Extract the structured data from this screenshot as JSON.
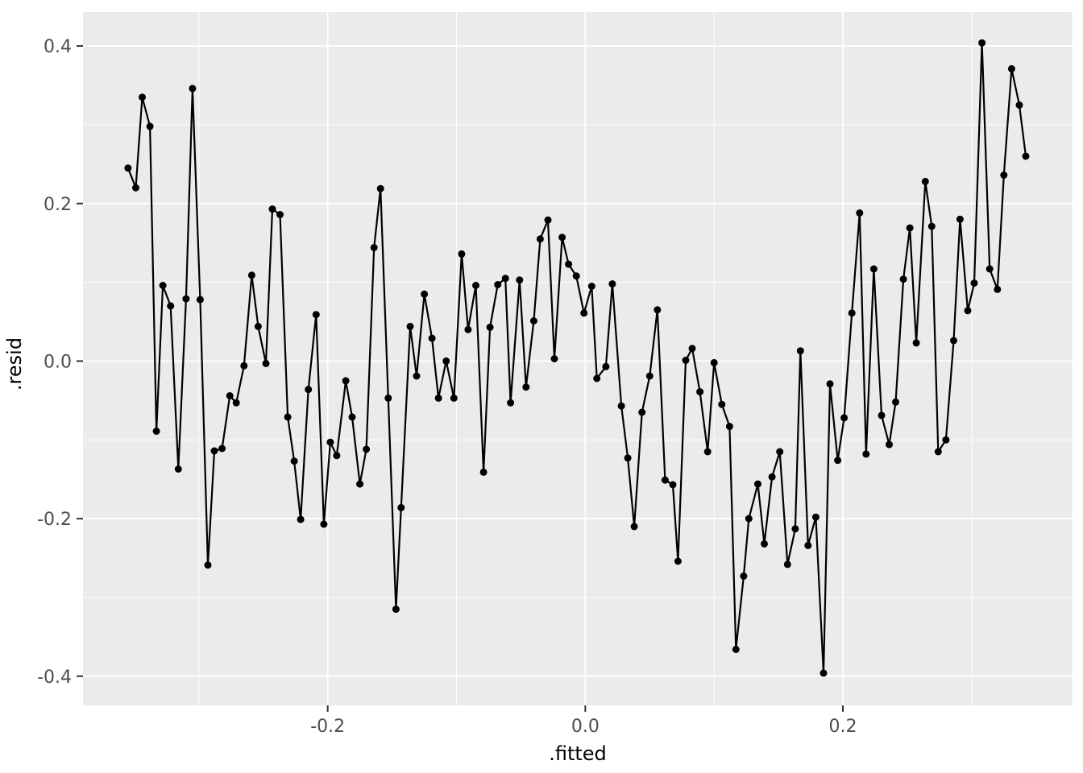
{
  "chart_data": {
    "type": "line",
    "title": "",
    "xlabel": ".fitted",
    "ylabel": ".resid",
    "x_domain": [
      -0.39,
      0.378
    ],
    "y_domain": [
      -0.437,
      0.443
    ],
    "x_ticks": [
      {
        "v": -0.2,
        "label": "-0.2"
      },
      {
        "v": 0.0,
        "label": "0.0"
      },
      {
        "v": 0.2,
        "label": "0.2"
      }
    ],
    "y_ticks": [
      {
        "v": -0.4,
        "label": "-0.4"
      },
      {
        "v": -0.2,
        "label": "-0.2"
      },
      {
        "v": 0.0,
        "label": "0.0"
      },
      {
        "v": 0.2,
        "label": "0.2"
      },
      {
        "v": 0.4,
        "label": "0.4"
      }
    ],
    "x_minor": [
      -0.3,
      -0.1,
      0.1,
      0.3
    ],
    "y_minor": [
      -0.3,
      -0.1,
      0.1,
      0.3
    ],
    "grid": true,
    "legend": "none",
    "colors": {
      "panel_bg": "#EBEBEB",
      "grid": "#FFFFFF",
      "line": "#000000",
      "point": "#000000",
      "tick_label": "#4D4D4D",
      "tick_mark": "#333333",
      "axis_title": "#000000"
    },
    "points": [
      [
        -0.355,
        0.245
      ],
      [
        -0.349,
        0.22
      ],
      [
        -0.344,
        0.335
      ],
      [
        -0.338,
        0.298
      ],
      [
        -0.333,
        -0.089
      ],
      [
        -0.328,
        0.096
      ],
      [
        -0.322,
        0.07
      ],
      [
        -0.316,
        -0.137
      ],
      [
        -0.31,
        0.079
      ],
      [
        -0.305,
        0.346
      ],
      [
        -0.299,
        0.078
      ],
      [
        -0.293,
        -0.259
      ],
      [
        -0.288,
        -0.114
      ],
      [
        -0.282,
        -0.111
      ],
      [
        -0.276,
        -0.044
      ],
      [
        -0.271,
        -0.053
      ],
      [
        -0.265,
        -0.006
      ],
      [
        -0.259,
        0.109
      ],
      [
        -0.254,
        0.044
      ],
      [
        -0.248,
        -0.003
      ],
      [
        -0.243,
        0.193
      ],
      [
        -0.237,
        0.186
      ],
      [
        -0.231,
        -0.071
      ],
      [
        -0.226,
        -0.127
      ],
      [
        -0.221,
        -0.201
      ],
      [
        -0.215,
        -0.036
      ],
      [
        -0.209,
        0.059
      ],
      [
        -0.203,
        -0.207
      ],
      [
        -0.198,
        -0.103
      ],
      [
        -0.193,
        -0.12
      ],
      [
        -0.186,
        -0.025
      ],
      [
        -0.181,
        -0.071
      ],
      [
        -0.175,
        -0.156
      ],
      [
        -0.17,
        -0.112
      ],
      [
        -0.164,
        0.144
      ],
      [
        -0.159,
        0.219
      ],
      [
        -0.153,
        -0.047
      ],
      [
        -0.147,
        -0.315
      ],
      [
        -0.143,
        -0.186
      ],
      [
        -0.136,
        0.044
      ],
      [
        -0.131,
        -0.019
      ],
      [
        -0.125,
        0.085
      ],
      [
        -0.119,
        0.029
      ],
      [
        -0.114,
        -0.047
      ],
      [
        -0.108,
        0.0
      ],
      [
        -0.102,
        -0.047
      ],
      [
        -0.096,
        0.136
      ],
      [
        -0.091,
        0.04
      ],
      [
        -0.085,
        0.096
      ],
      [
        -0.079,
        -0.141
      ],
      [
        -0.074,
        0.043
      ],
      [
        -0.068,
        0.097
      ],
      [
        -0.062,
        0.105
      ],
      [
        -0.058,
        -0.053
      ],
      [
        -0.051,
        0.103
      ],
      [
        -0.046,
        -0.033
      ],
      [
        -0.04,
        0.051
      ],
      [
        -0.035,
        0.155
      ],
      [
        -0.029,
        0.179
      ],
      [
        -0.024,
        0.003
      ],
      [
        -0.018,
        0.157
      ],
      [
        -0.013,
        0.123
      ],
      [
        -0.007,
        0.108
      ],
      [
        -0.001,
        0.061
      ],
      [
        0.005,
        0.095
      ],
      [
        0.009,
        -0.022
      ],
      [
        0.016,
        -0.007
      ],
      [
        0.021,
        0.098
      ],
      [
        0.028,
        -0.057
      ],
      [
        0.033,
        -0.123
      ],
      [
        0.038,
        -0.21
      ],
      [
        0.044,
        -0.065
      ],
      [
        0.05,
        -0.019
      ],
      [
        0.056,
        0.065
      ],
      [
        0.062,
        -0.151
      ],
      [
        0.068,
        -0.157
      ],
      [
        0.072,
        -0.254
      ],
      [
        0.078,
        0.001
      ],
      [
        0.083,
        0.016
      ],
      [
        0.089,
        -0.039
      ],
      [
        0.095,
        -0.115
      ],
      [
        0.1,
        -0.002
      ],
      [
        0.106,
        -0.055
      ],
      [
        0.112,
        -0.083
      ],
      [
        0.117,
        -0.366
      ],
      [
        0.123,
        -0.273
      ],
      [
        0.127,
        -0.2
      ],
      [
        0.134,
        -0.156
      ],
      [
        0.139,
        -0.232
      ],
      [
        0.145,
        -0.147
      ],
      [
        0.151,
        -0.115
      ],
      [
        0.157,
        -0.258
      ],
      [
        0.163,
        -0.213
      ],
      [
        0.167,
        0.013
      ],
      [
        0.173,
        -0.234
      ],
      [
        0.179,
        -0.198
      ],
      [
        0.185,
        -0.396
      ],
      [
        0.19,
        -0.029
      ],
      [
        0.196,
        -0.126
      ],
      [
        0.201,
        -0.072
      ],
      [
        0.207,
        0.061
      ],
      [
        0.213,
        0.188
      ],
      [
        0.218,
        -0.118
      ],
      [
        0.224,
        0.117
      ],
      [
        0.23,
        -0.069
      ],
      [
        0.236,
        -0.106
      ],
      [
        0.241,
        -0.052
      ],
      [
        0.247,
        0.104
      ],
      [
        0.252,
        0.169
      ],
      [
        0.257,
        0.023
      ],
      [
        0.264,
        0.228
      ],
      [
        0.269,
        0.171
      ],
      [
        0.274,
        -0.115
      ],
      [
        0.28,
        -0.1
      ],
      [
        0.286,
        0.026
      ],
      [
        0.291,
        0.18
      ],
      [
        0.297,
        0.064
      ],
      [
        0.302,
        0.099
      ],
      [
        0.308,
        0.404
      ],
      [
        0.314,
        0.117
      ],
      [
        0.32,
        0.091
      ],
      [
        0.325,
        0.236
      ],
      [
        0.331,
        0.371
      ],
      [
        0.337,
        0.325
      ],
      [
        0.342,
        0.26
      ]
    ]
  }
}
